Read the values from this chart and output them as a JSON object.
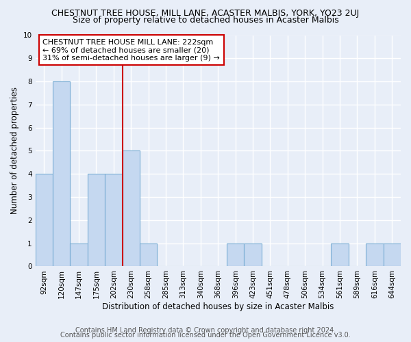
{
  "title": "CHESTNUT TREE HOUSE, MILL LANE, ACASTER MALBIS, YORK, YO23 2UJ",
  "subtitle": "Size of property relative to detached houses in Acaster Malbis",
  "xlabel": "Distribution of detached houses by size in Acaster Malbis",
  "ylabel": "Number of detached properties",
  "categories": [
    "92sqm",
    "120sqm",
    "147sqm",
    "175sqm",
    "202sqm",
    "230sqm",
    "258sqm",
    "285sqm",
    "313sqm",
    "340sqm",
    "368sqm",
    "396sqm",
    "423sqm",
    "451sqm",
    "478sqm",
    "506sqm",
    "534sqm",
    "561sqm",
    "589sqm",
    "616sqm",
    "644sqm"
  ],
  "values": [
    4,
    8,
    1,
    4,
    4,
    5,
    1,
    0,
    0,
    0,
    0,
    1,
    1,
    0,
    0,
    0,
    0,
    1,
    0,
    1,
    1
  ],
  "bar_color": "#c5d8f0",
  "bar_edge_color": "#7aadd4",
  "vline_x": 4.5,
  "vline_color": "#cc0000",
  "annotation_text": "CHESTNUT TREE HOUSE MILL LANE: 222sqm\n← 69% of detached houses are smaller (20)\n31% of semi-detached houses are larger (9) →",
  "annotation_box_color": "#ffffff",
  "annotation_box_edge": "#cc0000",
  "ylim": [
    0,
    10
  ],
  "yticks": [
    0,
    1,
    2,
    3,
    4,
    5,
    6,
    7,
    8,
    9,
    10
  ],
  "footer1": "Contains HM Land Registry data © Crown copyright and database right 2024.",
  "footer2": "Contains public sector information licensed under the Open Government Licence v3.0.",
  "bg_color": "#e8eef8",
  "grid_color": "#ffffff",
  "title_fontsize": 9,
  "subtitle_fontsize": 9,
  "axis_label_fontsize": 8.5,
  "tick_fontsize": 7.5,
  "annotation_fontsize": 8,
  "footer_fontsize": 7
}
